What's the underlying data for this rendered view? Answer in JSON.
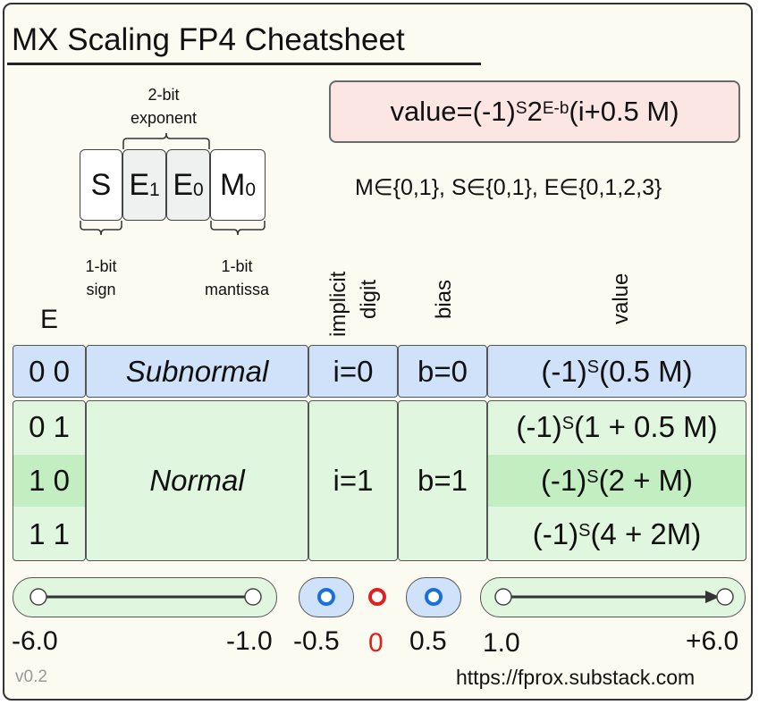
{
  "title": "MX Scaling FP4 Cheatsheet",
  "formula": {
    "prefix": "value=(-1)",
    "s": "S",
    "two": "2",
    "exp": "E-b",
    "suffix": "(i+0.5 M)"
  },
  "domains": "M∈{0,1}, S∈{0,1}, E∈{0,1,2,3}",
  "bit_layout": {
    "exponent_label_line1": "2-bit",
    "exponent_label_line2": "exponent",
    "bits": [
      {
        "base": "S",
        "sub": ""
      },
      {
        "base": "E",
        "sub": "1"
      },
      {
        "base": "E",
        "sub": "0"
      },
      {
        "base": "M",
        "sub": "0"
      }
    ],
    "sign_label_line1": "1-bit",
    "sign_label_line2": "sign",
    "mantissa_label_line1": "1-bit",
    "mantissa_label_line2": "mantissa"
  },
  "columns": {
    "e": "E",
    "implicit_line1": "implicit",
    "implicit_line2": "digit",
    "bias": "bias",
    "value": "value"
  },
  "subnormal": {
    "e": "0 0",
    "name": "Subnormal",
    "implicit": "i=0",
    "bias": "b=0",
    "value_pre": "(-1)",
    "value_s": "S",
    "value_post": "(0.5 M)"
  },
  "normal": {
    "name": "Normal",
    "implicit": "i=1",
    "bias": "b=1",
    "rows": [
      {
        "e": "0 1",
        "value_pre": "(-1)",
        "value_s": "S",
        "value_post": "(1 + 0.5 M)"
      },
      {
        "e": "1 0",
        "value_pre": "(-1)",
        "value_s": "S",
        "value_post": "(2 + M)"
      },
      {
        "e": "1 1",
        "value_pre": "(-1)",
        "value_s": "S",
        "value_post": "(4 + 2M)"
      }
    ]
  },
  "number_line": {
    "labels": [
      "-6.0",
      "-1.0",
      "-0.5",
      "0",
      "0.5",
      "1.0",
      "+6.0"
    ],
    "colors": {
      "blue_point": "#1a6fe0",
      "zero_point": "#e02020"
    }
  },
  "footer": {
    "version": "v0.2",
    "url": "https://fprox.substack.com"
  }
}
